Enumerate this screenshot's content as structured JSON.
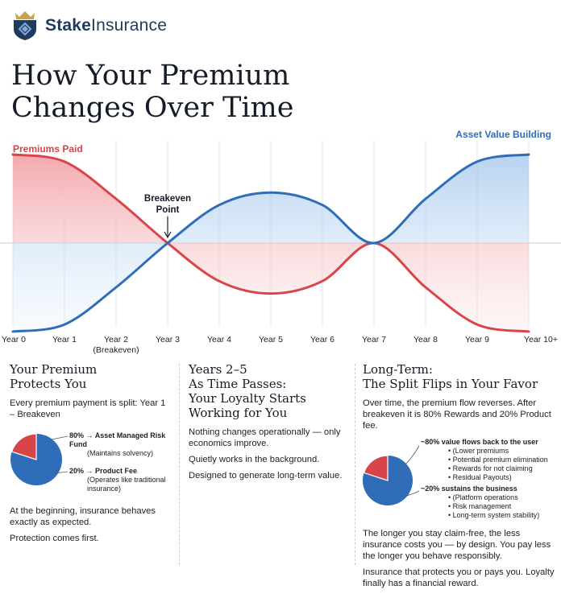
{
  "brand": {
    "name_bold": "Stake",
    "name_rest": "Insurance"
  },
  "headline": {
    "line1": "How Your Premium",
    "line2": "Changes Over Time"
  },
  "colors": {
    "premium": "#d9444a",
    "asset": "#2f6db8",
    "navy": "#1f3a5f",
    "gold": "#c9a24a"
  },
  "chart_data": {
    "type": "area",
    "x": [
      "Year 0",
      "Year 1",
      "Year 2",
      "Year 3",
      "Year 4",
      "Year 5",
      "Year 6",
      "Year 7",
      "Year 8",
      "Year 9",
      "Year 10+"
    ],
    "series": [
      {
        "name": "Premiums Paid",
        "values": [
          1.0,
          0.92,
          0.5,
          0.0,
          -0.43,
          -0.57,
          -0.43,
          0.0,
          -0.5,
          -0.92,
          -1.0
        ]
      },
      {
        "name": "Asset Value Building",
        "values": [
          -1.0,
          -0.92,
          -0.5,
          0.0,
          0.43,
          0.57,
          0.43,
          0.0,
          0.5,
          0.92,
          1.0
        ]
      }
    ],
    "annotations": [
      {
        "text": "Breakeven Point",
        "x": "Year 3"
      }
    ],
    "x_sublabel": "(Breakeven)",
    "grid": "vertical",
    "legend": "inline"
  },
  "col1": {
    "heading_line1": "Your Premium",
    "heading_line2": "Protects You",
    "intro": "Every premium payment is split: Year 1 – Breakeven",
    "slices": [
      {
        "pct": "80%",
        "title": "→ Asset Managed Risk Fund",
        "note": "(Maintains solvency)",
        "value": 80
      },
      {
        "pct": "20%",
        "title": "→ Product Fee",
        "note": "(Operates like traditional insurance)",
        "value": 20
      }
    ],
    "p1": "At the beginning, insurance behaves exactly as expected.",
    "p2": "Protection comes first."
  },
  "col2": {
    "heading_line1": "Years 2–5",
    "heading_line2": "As Time Passes:",
    "heading_line3": "Your Loyalty Starts",
    "heading_line4": "Working for You",
    "p1": "Nothing changes operationally — only economics improve.",
    "p2": "Quietly works in the background.",
    "p3": "Designed to generate long-term value."
  },
  "col3": {
    "heading_line1": "Long-Term:",
    "heading_line2": "The Split Flips in Your Favor",
    "intro": "Over time, the premium flow reverses. After breakeven it is 80% Rewards and 20% Product fee.",
    "group1": {
      "title": "~80% value flows back to the user",
      "items": [
        "(Lower premiums",
        "Potential premium elimination",
        "Rewards for not claiming",
        "Residual Payouts)"
      ],
      "value": 80
    },
    "group2": {
      "title": "~20% sustains the business",
      "items": [
        "(Platform operations",
        "Risk management",
        "Long-term system stability)"
      ],
      "value": 20
    },
    "p1": "The longer you stay claim-free, the less insurance costs you — by design. You pay less the longer you behave responsibly.",
    "p2": "Insurance that protects you or pays you. Loyalty finally has a financial reward."
  }
}
